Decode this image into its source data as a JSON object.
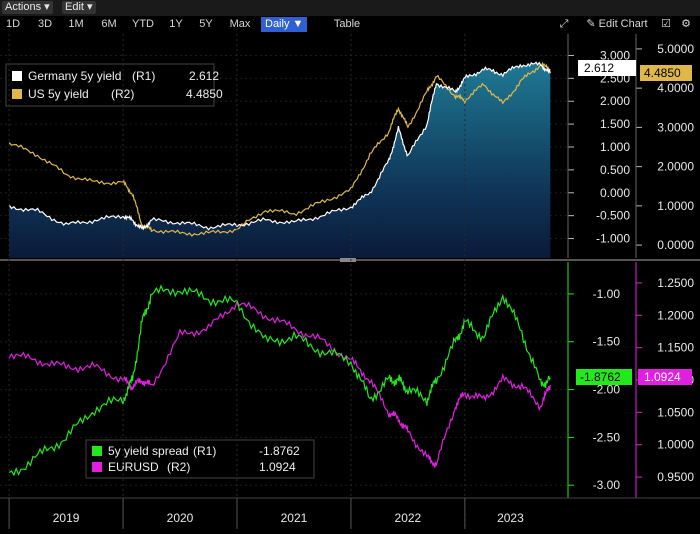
{
  "menubar": {
    "actions": "Actions",
    "edit": "Edit"
  },
  "toolbar": {
    "timeframes": [
      "1D",
      "3D",
      "1M",
      "6M",
      "YTD",
      "1Y",
      "5Y",
      "Max"
    ],
    "frequency": "Daily",
    "table": "Table",
    "edit_chart": "Edit Chart"
  },
  "colors": {
    "germany": "#ffffff",
    "us": "#e0b84a",
    "spread": "#22e81c",
    "eurusd": "#e01fe0",
    "area": "#1f6a8a"
  },
  "chart_data": [
    {
      "type": "line",
      "panel": "top",
      "x_ticks": [
        "2019",
        "2020",
        "2021",
        "2022",
        "2023"
      ],
      "x": [
        "2019-01",
        "2019-04",
        "2019-07",
        "2019-10",
        "2020-01",
        "2020-02",
        "2020-03",
        "2020-04",
        "2020-07",
        "2020-10",
        "2021-01",
        "2021-04",
        "2021-07",
        "2021-10",
        "2022-01",
        "2022-03",
        "2022-05",
        "2022-06",
        "2022-07",
        "2022-09",
        "2022-10",
        "2022-12",
        "2023-01",
        "2023-03",
        "2023-05",
        "2023-07",
        "2023-09",
        "2023-10"
      ],
      "series": [
        {
          "name": "Germany 5y yield",
          "axis": "R1",
          "value": "2.612",
          "values": [
            -0.3,
            -0.4,
            -0.7,
            -0.6,
            -0.5,
            -0.6,
            -0.8,
            -0.6,
            -0.65,
            -0.75,
            -0.7,
            -0.6,
            -0.65,
            -0.5,
            -0.3,
            0.0,
            0.7,
            1.4,
            0.8,
            1.5,
            2.4,
            2.2,
            2.5,
            2.7,
            2.6,
            2.8,
            2.8,
            2.612
          ]
        },
        {
          "name": "US 5y yield",
          "axis": "R2",
          "value": "4.4850",
          "values": [
            2.6,
            2.3,
            1.8,
            1.6,
            1.6,
            1.3,
            0.5,
            0.4,
            0.3,
            0.3,
            0.4,
            0.9,
            0.8,
            1.1,
            1.4,
            2.3,
            2.9,
            3.5,
            3.0,
            3.9,
            4.3,
            3.8,
            3.7,
            4.1,
            3.6,
            4.2,
            4.6,
            4.485
          ]
        }
      ],
      "axes": {
        "R1": {
          "ylim": [
            -1.25,
            3.25
          ],
          "ticks": [
            "3.000",
            "2.500",
            "2.000",
            "1.500",
            "1.000",
            "0.500",
            "0.000",
            "-0.500",
            "-1.000"
          ]
        },
        "R2": {
          "ylim": [
            -0.125,
            5.125
          ],
          "ticks": [
            "5.0000",
            "4.0000",
            "3.0000",
            "2.0000",
            "1.0000",
            "0.0000"
          ]
        }
      },
      "current_labels": {
        "R1": "2.612",
        "R2": "4.4850"
      }
    },
    {
      "type": "line",
      "panel": "bottom",
      "x": [
        "2019-01",
        "2019-04",
        "2019-07",
        "2019-10",
        "2020-01",
        "2020-02",
        "2020-03",
        "2020-04",
        "2020-07",
        "2020-10",
        "2021-01",
        "2021-04",
        "2021-07",
        "2021-10",
        "2022-01",
        "2022-03",
        "2022-05",
        "2022-06",
        "2022-07",
        "2022-09",
        "2022-10",
        "2022-12",
        "2023-01",
        "2023-03",
        "2023-05",
        "2023-07",
        "2023-09",
        "2023-10"
      ],
      "series": [
        {
          "name": "5y yield spread",
          "axis": "R1",
          "value": "-1.8762",
          "values": [
            -2.9,
            -2.7,
            -2.5,
            -2.2,
            -2.1,
            -1.9,
            -1.3,
            -1.0,
            -0.95,
            -1.05,
            -1.1,
            -1.5,
            -1.45,
            -1.6,
            -1.7,
            -2.1,
            -1.9,
            -1.9,
            -2.0,
            -2.1,
            -1.9,
            -1.5,
            -1.3,
            -1.45,
            -1.0,
            -1.4,
            -1.95,
            -1.8762
          ]
        },
        {
          "name": "EURUSD",
          "axis": "R2",
          "value": "1.0924",
          "values": [
            1.14,
            1.13,
            1.12,
            1.12,
            1.1,
            1.09,
            1.1,
            1.09,
            1.17,
            1.18,
            1.22,
            1.2,
            1.18,
            1.16,
            1.13,
            1.1,
            1.05,
            1.04,
            1.02,
            0.98,
            0.97,
            1.06,
            1.08,
            1.07,
            1.1,
            1.09,
            1.06,
            1.0924
          ]
        }
      ],
      "axes": {
        "R1": {
          "ylim": [
            -3.05,
            -0.75
          ],
          "ticks": [
            "-1.00",
            "-1.50",
            "-2.00",
            "-2.50",
            "-3.00"
          ]
        },
        "R2": {
          "ylim": [
            0.93,
            1.27
          ],
          "ticks": [
            "1.2500",
            "1.2000",
            "1.1500",
            "1.1000",
            "1.0500",
            "1.0000",
            "0.9500"
          ]
        }
      },
      "current_labels": {
        "R1": "-1.8762",
        "R2": "1.0924"
      }
    }
  ]
}
